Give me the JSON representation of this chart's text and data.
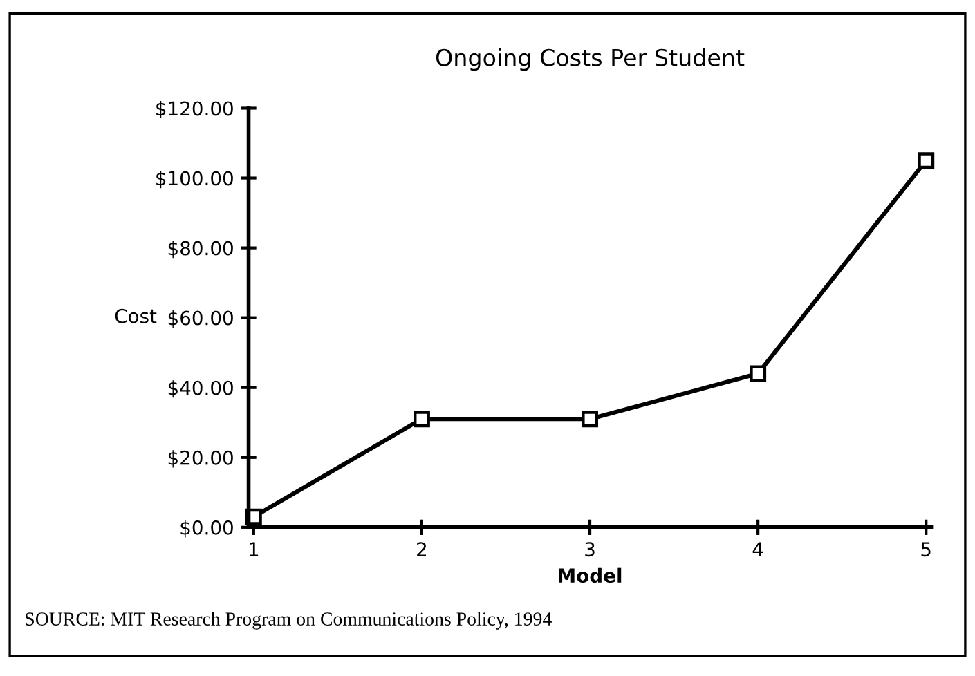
{
  "chart_data": {
    "type": "line",
    "title": "Ongoing Costs Per Student",
    "xlabel": "Model",
    "ylabel": "Cost",
    "categories": [
      "1",
      "2",
      "3",
      "4",
      "5"
    ],
    "series": [
      {
        "color": "#000000",
        "values": [
          3,
          31,
          31,
          44,
          105
        ]
      }
    ],
    "ylim": [
      0,
      120
    ],
    "yticks": [
      {
        "value": 0,
        "label": "$0.00"
      },
      {
        "value": 20,
        "label": "$20.00"
      },
      {
        "value": 40,
        "label": "$40.00"
      },
      {
        "value": 60,
        "label": "$60.00"
      },
      {
        "value": 80,
        "label": "$80.00"
      },
      {
        "value": 100,
        "label": "$100.00"
      },
      {
        "value": 120,
        "label": "$120.00"
      }
    ],
    "marker": "square",
    "line_style": "solid",
    "annotations": [
      "SOURCE: MIT Research Program on Communications Policy, 1994"
    ]
  }
}
